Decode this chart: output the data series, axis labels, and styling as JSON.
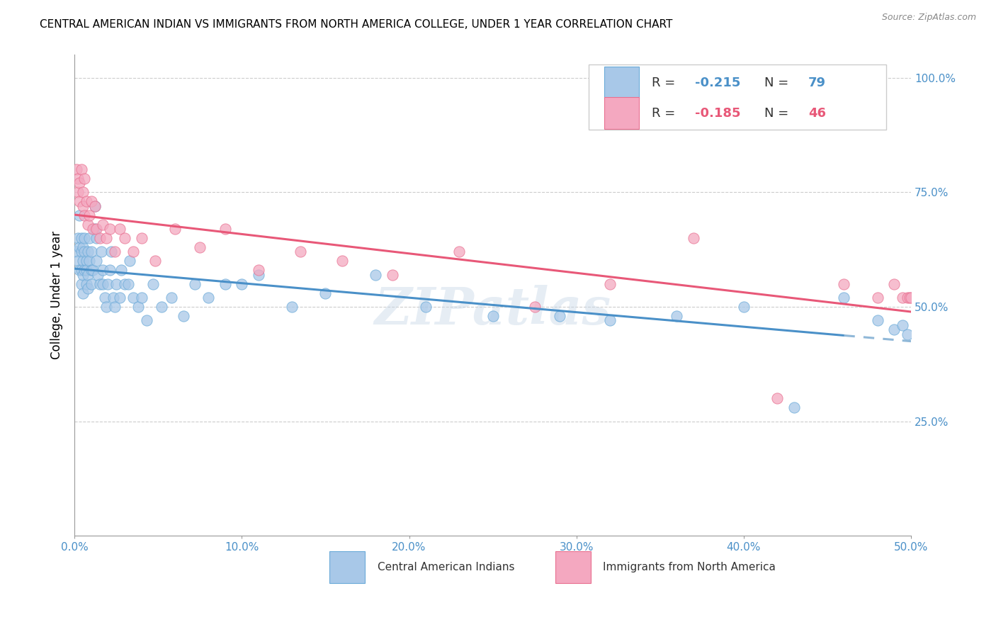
{
  "title": "CENTRAL AMERICAN INDIAN VS IMMIGRANTS FROM NORTH AMERICA COLLEGE, UNDER 1 YEAR CORRELATION CHART",
  "source": "Source: ZipAtlas.com",
  "ylabel": "College, Under 1 year",
  "legend_label1": "Central American Indians",
  "legend_label2": "Immigrants from North America",
  "color_blue": "#A8C8E8",
  "color_pink": "#F4A8C0",
  "edge_blue": "#6AAAD8",
  "edge_pink": "#E87090",
  "trendline_blue": "#4A90C8",
  "trendline_pink": "#E85878",
  "trendline_blue_dashed": "#90B8D8",
  "r1": -0.215,
  "r2": -0.185,
  "n1": 79,
  "n2": 46,
  "blue_x": [
    0.001,
    0.002,
    0.002,
    0.003,
    0.003,
    0.003,
    0.004,
    0.004,
    0.004,
    0.004,
    0.005,
    0.005,
    0.005,
    0.005,
    0.006,
    0.006,
    0.006,
    0.007,
    0.007,
    0.007,
    0.008,
    0.008,
    0.008,
    0.009,
    0.009,
    0.01,
    0.01,
    0.01,
    0.011,
    0.012,
    0.012,
    0.013,
    0.013,
    0.014,
    0.015,
    0.016,
    0.017,
    0.017,
    0.018,
    0.019,
    0.02,
    0.021,
    0.022,
    0.023,
    0.024,
    0.025,
    0.027,
    0.028,
    0.03,
    0.032,
    0.033,
    0.035,
    0.038,
    0.04,
    0.043,
    0.047,
    0.052,
    0.058,
    0.065,
    0.072,
    0.08,
    0.09,
    0.1,
    0.11,
    0.13,
    0.15,
    0.18,
    0.21,
    0.25,
    0.29,
    0.32,
    0.36,
    0.4,
    0.43,
    0.46,
    0.48,
    0.49,
    0.495,
    0.498
  ],
  "blue_y": [
    0.62,
    0.65,
    0.6,
    0.63,
    0.58,
    0.7,
    0.65,
    0.62,
    0.58,
    0.55,
    0.63,
    0.6,
    0.57,
    0.53,
    0.62,
    0.58,
    0.65,
    0.6,
    0.55,
    0.58,
    0.62,
    0.57,
    0.54,
    0.6,
    0.65,
    0.58,
    0.62,
    0.55,
    0.58,
    0.72,
    0.67,
    0.65,
    0.6,
    0.57,
    0.55,
    0.62,
    0.58,
    0.55,
    0.52,
    0.5,
    0.55,
    0.58,
    0.62,
    0.52,
    0.5,
    0.55,
    0.52,
    0.58,
    0.55,
    0.55,
    0.6,
    0.52,
    0.5,
    0.52,
    0.47,
    0.55,
    0.5,
    0.52,
    0.48,
    0.55,
    0.52,
    0.55,
    0.55,
    0.57,
    0.5,
    0.53,
    0.57,
    0.5,
    0.48,
    0.48,
    0.47,
    0.48,
    0.5,
    0.28,
    0.52,
    0.47,
    0.45,
    0.46,
    0.44
  ],
  "pink_x": [
    0.001,
    0.002,
    0.002,
    0.003,
    0.003,
    0.004,
    0.005,
    0.005,
    0.006,
    0.006,
    0.007,
    0.008,
    0.009,
    0.01,
    0.011,
    0.012,
    0.013,
    0.015,
    0.017,
    0.019,
    0.021,
    0.024,
    0.027,
    0.03,
    0.035,
    0.04,
    0.048,
    0.06,
    0.075,
    0.09,
    0.11,
    0.135,
    0.16,
    0.19,
    0.23,
    0.275,
    0.32,
    0.37,
    0.42,
    0.46,
    0.48,
    0.49,
    0.495,
    0.498,
    0.499,
    0.5
  ],
  "pink_y": [
    0.8,
    0.78,
    0.75,
    0.77,
    0.73,
    0.8,
    0.75,
    0.72,
    0.78,
    0.7,
    0.73,
    0.68,
    0.7,
    0.73,
    0.67,
    0.72,
    0.67,
    0.65,
    0.68,
    0.65,
    0.67,
    0.62,
    0.67,
    0.65,
    0.62,
    0.65,
    0.6,
    0.67,
    0.63,
    0.67,
    0.58,
    0.62,
    0.6,
    0.57,
    0.62,
    0.5,
    0.55,
    0.65,
    0.3,
    0.55,
    0.52,
    0.55,
    0.52,
    0.52,
    0.52,
    0.52
  ],
  "xlim": [
    0.0,
    0.5
  ],
  "ylim": [
    0.0,
    1.05
  ],
  "y_ticks": [
    0.25,
    0.5,
    0.75,
    1.0
  ],
  "x_ticks": [
    0.0,
    0.1,
    0.2,
    0.3,
    0.4,
    0.5
  ],
  "watermark": "ZIPatlas",
  "figsize": [
    14.06,
    8.92
  ]
}
